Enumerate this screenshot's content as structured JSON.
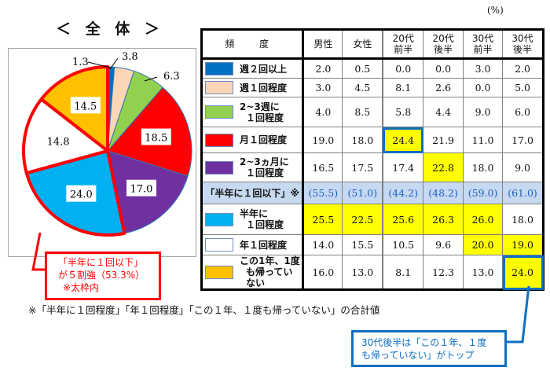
{
  "title": "＜ 全 体 ＞",
  "unit": "(%)",
  "chart_data": {
    "type": "pie",
    "title": "＜ 全 体 ＞",
    "categories": [
      "週２回以上",
      "週１回程度",
      "2~3週に１回程度",
      "月１回程度",
      "2~3ヵ月に１回程度",
      "半年に１回程度",
      "年１回程度",
      "この１年、１度も帰っていない"
    ],
    "values": [
      1.3,
      3.8,
      6.3,
      18.5,
      17.0,
      24.0,
      14.8,
      14.5
    ],
    "colors": [
      "#0070c0",
      "#fbd5b5",
      "#92d050",
      "#ff0000",
      "#7030a0",
      "#00b0f0",
      "#ffffff",
      "#ffc000"
    ],
    "highlight_group": {
      "label": "「半年に１回以下」",
      "members": [
        5,
        6,
        7
      ],
      "total": 53.3,
      "outline_color": "#ff0000"
    },
    "start_angle_deg": 0,
    "direction": "clockwise"
  },
  "pie_labels": [
    "1.3",
    "3.8",
    "6.3",
    "18.5",
    "17.0",
    "24.0",
    "14.8",
    "14.5"
  ],
  "table": {
    "header": {
      "label": "頻 度",
      "cols": [
        [
          "男性"
        ],
        [
          "女性"
        ],
        [
          "20代",
          "前半"
        ],
        [
          "20代",
          "後半"
        ],
        [
          "30代",
          "前半"
        ],
        [
          "30代",
          "後半"
        ]
      ]
    },
    "rows": [
      {
        "label": [
          "週２回以上"
        ],
        "swatch": "#0070c0",
        "values": [
          "2.0",
          "0.5",
          "0.0",
          "0.0",
          "3.0",
          "2.0"
        ],
        "yellow": [],
        "boxed": []
      },
      {
        "label": [
          "週１回程度"
        ],
        "swatch": "#fbd5b5",
        "values": [
          "3.0",
          "4.5",
          "8.1",
          "2.6",
          "0.0",
          "5.0"
        ],
        "yellow": [],
        "boxed": []
      },
      {
        "label": [
          "2~3週に",
          "１回程度"
        ],
        "swatch": "#92d050",
        "values": [
          "4.0",
          "8.5",
          "5.8",
          "4.4",
          "9.0",
          "6.0"
        ],
        "yellow": [],
        "boxed": []
      },
      {
        "label": [
          "月１回程度"
        ],
        "swatch": "#ff0000",
        "values": [
          "19.0",
          "18.0",
          "24.4",
          "21.9",
          "11.0",
          "17.0"
        ],
        "yellow": [
          2
        ],
        "boxed": [
          2
        ]
      },
      {
        "label": [
          "2~3ヵ月に",
          "１回程度"
        ],
        "swatch": "#7030a0",
        "values": [
          "16.5",
          "17.5",
          "17.4",
          "22.8",
          "18.0",
          "9.0"
        ],
        "yellow": [
          3
        ],
        "boxed": []
      },
      {
        "label": [
          "「半年に１回以下」※"
        ],
        "swatch": null,
        "summary": true,
        "values": [
          "(55.5)",
          "(51.0)",
          "(44.2)",
          "(48.2)",
          "(59.0)",
          "(61.0)"
        ],
        "yellow": [],
        "boxed": []
      },
      {
        "label": [
          "半年に",
          "１回程度"
        ],
        "swatch": "#00b0f0",
        "values": [
          "25.5",
          "22.5",
          "25.6",
          "26.3",
          "26.0",
          "18.0"
        ],
        "yellow": [
          0,
          1,
          2,
          3,
          4
        ],
        "boxed": []
      },
      {
        "label": [
          "年１回程度"
        ],
        "swatch": "#ffffff",
        "values": [
          "14.0",
          "15.5",
          "10.5",
          "9.6",
          "20.0",
          "19.0"
        ],
        "yellow": [
          4,
          5
        ],
        "boxed": []
      },
      {
        "label": [
          "この1年、1度",
          "も帰っていない"
        ],
        "swatch": "#ffc000",
        "values": [
          "16.0",
          "13.0",
          "8.1",
          "12.3",
          "13.0",
          "24.0"
        ],
        "yellow": [
          5
        ],
        "boxed": [
          5
        ]
      }
    ]
  },
  "red_callout": [
    "「半年に１回以下」",
    "が５割強（53.3%）",
    "※太枠内"
  ],
  "note": "※「半年に１回程度」「年１回程度」「この１年、１度も帰っていない」の合計値",
  "blue_callout": [
    "30代後半は「この１年、１度",
    "も帰っていない」がトップ"
  ],
  "colors": {
    "accent_red": "#ff0000",
    "accent_blue": "#0e6fc2",
    "highlight_yellow": "#ffff00",
    "summary_bg": "#c6d9f0"
  }
}
